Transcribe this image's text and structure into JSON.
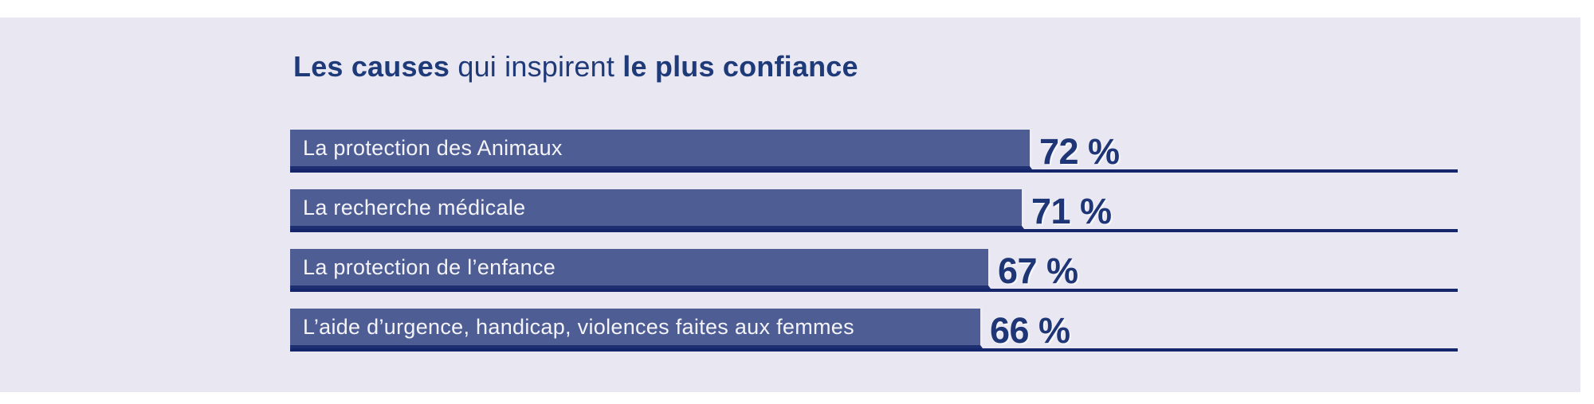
{
  "title": {
    "full_text": "Les causes qui inspirent le plus confiance",
    "segments": [
      {
        "text": "Les causes ",
        "bold": true
      },
      {
        "text": "qui inspirent ",
        "bold": false
      },
      {
        "text": "le plus confiance",
        "bold": true
      }
    ]
  },
  "chart_data": {
    "type": "bar",
    "orientation": "horizontal",
    "title": "Les causes qui inspirent le plus confiance",
    "categories": [
      "La protection des Animaux",
      "La recherche médicale",
      "La protection de l’enfance",
      "L’aide d’urgence, handicap, violences faites aux femmes"
    ],
    "values": [
      72,
      71,
      67,
      66
    ],
    "value_labels": [
      "72 %",
      "71 %",
      "67 %",
      "66 %"
    ],
    "unit": "%",
    "xlim": [
      0,
      100
    ],
    "grid": false,
    "legend": false,
    "colors": {
      "bar_fill": "#4e5e95",
      "baseline_rule": "#15266a",
      "value_text": "#1e3576",
      "category_text": "#f4f3f8",
      "panel_background": "#e8e7f2",
      "page_background": "#ffffff",
      "title_text": "#1e3a78"
    }
  }
}
